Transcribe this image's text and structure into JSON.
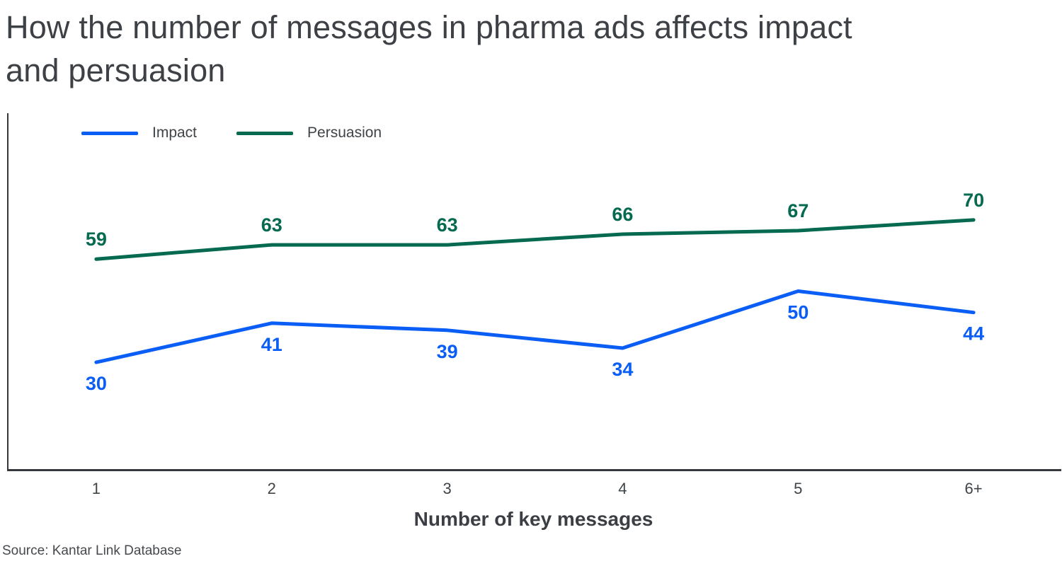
{
  "title": "How the number of messages in pharma ads affects impact and persuasion",
  "source": "Source: Kantar Link Database",
  "colors": {
    "impact": "#0a5df5",
    "persuasion": "#056a50",
    "axis": "#35383c",
    "text": "#3f4448"
  },
  "chart_data": {
    "type": "line",
    "categories": [
      "1",
      "2",
      "3",
      "4",
      "5",
      "6+"
    ],
    "series": [
      {
        "name": "Impact",
        "values": [
          30,
          41,
          39,
          34,
          50,
          44
        ],
        "color": "#0a5df5",
        "label_position": "below"
      },
      {
        "name": "Persuasion",
        "values": [
          59,
          63,
          63,
          66,
          67,
          70
        ],
        "color": "#056a50",
        "label_position": "above"
      }
    ],
    "xlabel": "Number of key messages",
    "ylim": [
      0,
      100
    ],
    "grid": false,
    "legend_position": "top-left"
  }
}
